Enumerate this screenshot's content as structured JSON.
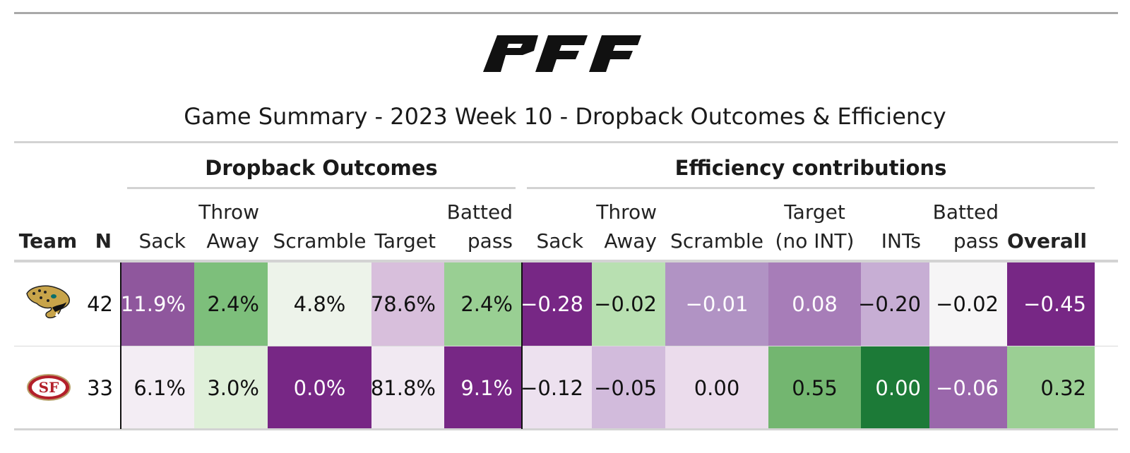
{
  "title": "Game Summary - 2023 Week 10 - Dropback Outcomes & Efficiency",
  "logo_text": "PFF",
  "groups": [
    "Dropback Outcomes",
    "Efficiency contributions"
  ],
  "columns": [
    {
      "lines": [
        "Team"
      ],
      "bold": true
    },
    {
      "lines": [
        "N"
      ],
      "bold": true
    },
    {
      "lines": [
        "Sack"
      ]
    },
    {
      "lines": [
        "Throw",
        "Away"
      ]
    },
    {
      "lines": [
        "Scramble"
      ]
    },
    {
      "lines": [
        "Target"
      ]
    },
    {
      "lines": [
        "Batted",
        "pass"
      ]
    },
    {
      "lines": [
        "Sack"
      ]
    },
    {
      "lines": [
        "Throw",
        "Away"
      ]
    },
    {
      "lines": [
        "Scramble"
      ]
    },
    {
      "lines": [
        "Target",
        "(no INT)"
      ]
    },
    {
      "lines": [
        "INTs"
      ]
    },
    {
      "lines": [
        "Batted",
        "pass"
      ]
    },
    {
      "lines": [
        "Overall"
      ],
      "bold": true
    }
  ],
  "rows": [
    {
      "team_icon": "jaguars-logo-icon",
      "n": "42",
      "cells": [
        {
          "text": "11.9%",
          "bg": "#8f579d",
          "fg": "#ffffff"
        },
        {
          "text": "2.4%",
          "bg": "#7dbf7b",
          "fg": "#111111"
        },
        {
          "text": "4.8%",
          "bg": "#edf3ea",
          "fg": "#111111"
        },
        {
          "text": "78.6%",
          "bg": "#d8bfdc",
          "fg": "#111111"
        },
        {
          "text": "2.4%",
          "bg": "#99cf93",
          "fg": "#111111"
        },
        {
          "text": "−0.28",
          "bg": "#772785",
          "fg": "#ffffff"
        },
        {
          "text": "−0.02",
          "bg": "#b8e0b1",
          "fg": "#111111"
        },
        {
          "text": "−0.01",
          "bg": "#b193c4",
          "fg": "#ffffff"
        },
        {
          "text": "0.08",
          "bg": "#a77db8",
          "fg": "#ffffff"
        },
        {
          "text": "−0.20",
          "bg": "#c7aed4",
          "fg": "#111111"
        },
        {
          "text": "−0.02",
          "bg": "#f6f5f6",
          "fg": "#111111"
        },
        {
          "text": "−0.45",
          "bg": "#772785",
          "fg": "#ffffff"
        }
      ]
    },
    {
      "team_icon": "49ers-logo-icon",
      "n": "33",
      "cells": [
        {
          "text": "6.1%",
          "bg": "#f3edf4",
          "fg": "#111111"
        },
        {
          "text": "3.0%",
          "bg": "#dff0d9",
          "fg": "#111111"
        },
        {
          "text": "0.0%",
          "bg": "#772785",
          "fg": "#ffffff"
        },
        {
          "text": "81.8%",
          "bg": "#f1e9f2",
          "fg": "#111111"
        },
        {
          "text": "9.1%",
          "bg": "#772785",
          "fg": "#ffffff"
        },
        {
          "text": "−0.12",
          "bg": "#ede1ef",
          "fg": "#111111"
        },
        {
          "text": "−0.05",
          "bg": "#d2bbdc",
          "fg": "#111111"
        },
        {
          "text": "0.00",
          "bg": "#ebdcec",
          "fg": "#111111"
        },
        {
          "text": "0.55",
          "bg": "#73b670",
          "fg": "#111111"
        },
        {
          "text": "0.00",
          "bg": "#1c7a37",
          "fg": "#ffffff"
        },
        {
          "text": "−0.06",
          "bg": "#9a67ab",
          "fg": "#ffffff"
        },
        {
          "text": "0.32",
          "bg": "#9bcf94",
          "fg": "#111111"
        }
      ]
    }
  ]
}
